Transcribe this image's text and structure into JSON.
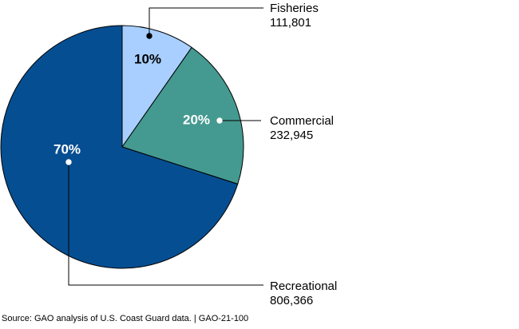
{
  "chart_data": {
    "type": "pie",
    "start_angle_deg": 0,
    "direction": "clockwise",
    "slices": [
      {
        "category": "Fisheries",
        "value": 111801,
        "display_value": "111,801",
        "percent_label": "10%",
        "color": "#a8cfff",
        "pct_text_color": "#000000"
      },
      {
        "category": "Commercial",
        "value": 232945,
        "display_value": "232,945",
        "percent_label": "20%",
        "color": "#449a90",
        "pct_text_color": "#ffffff"
      },
      {
        "category": "Recreational",
        "value": 806366,
        "display_value": "806,366",
        "percent_label": "70%",
        "color": "#064e92",
        "pct_text_color": "#ffffff"
      }
    ]
  },
  "source_text": "Source: GAO analysis of U.S. Coast Guard data.  |  GAO-21-100"
}
